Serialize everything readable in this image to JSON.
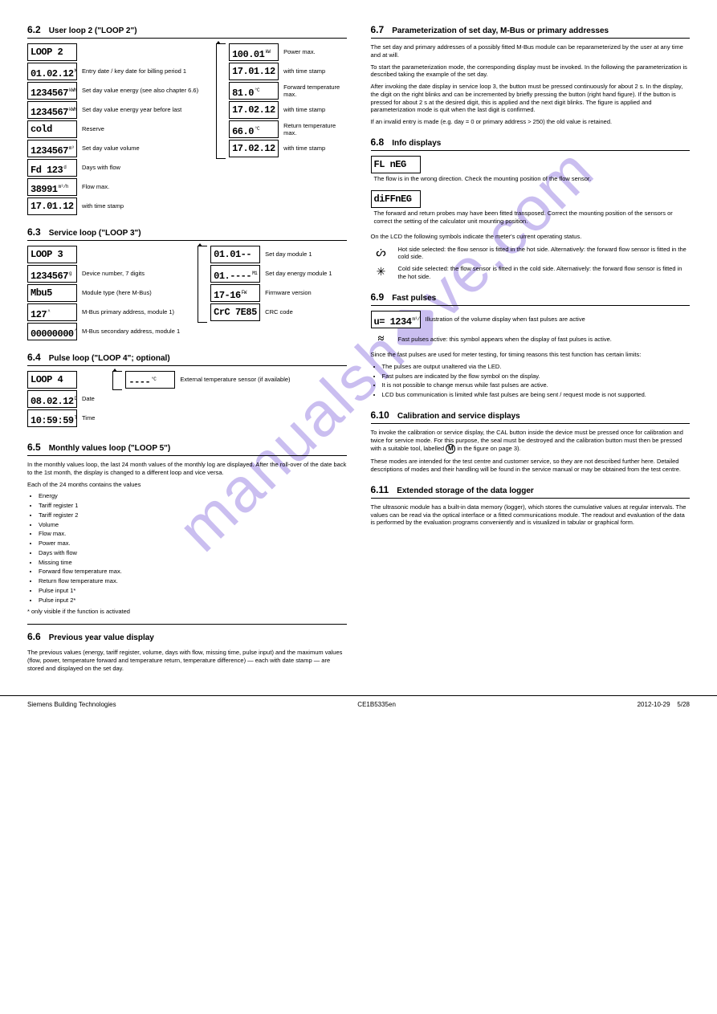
{
  "watermark": "manualshive.com",
  "left": {
    "s62": {
      "num": "6.2",
      "title": "User loop 2 (\"LOOP 2\")",
      "main": [
        {
          "disp": "LOOP 2",
          "desc": ""
        },
        {
          "disp": "01.02.12",
          "sub": "M1",
          "desc": "Entry date / key date for billing period 1"
        },
        {
          "disp": "1234567",
          "sub": "kWh",
          "desc": "Set day value energy (see also chapter 6.6)"
        },
        {
          "disp": "1234567",
          "sub": "kWh",
          "desc": "Set day value energy year before last"
        },
        {
          "disp": "cold",
          "sub": "",
          "desc": "Reserve"
        },
        {
          "disp": "1234567",
          "sub": "m³",
          "desc": "Set day value volume"
        },
        {
          "disp": "Fd 123",
          "sub": "d",
          "desc": "Days with flow"
        },
        {
          "disp": "38991",
          "sub": "m³/h",
          "desc": "Flow max."
        },
        {
          "disp": "17.01.12",
          "sub": "",
          "desc": "with time stamp"
        }
      ],
      "sub": [
        {
          "disp": "100.01",
          "sub": "kW",
          "desc": "Power max."
        },
        {
          "disp": "17.01.12",
          "sub": "",
          "desc": "with time stamp"
        },
        {
          "disp": "81.0",
          "sub": "°C",
          "desc": "Forward temperature max."
        },
        {
          "disp": "17.02.12",
          "sub": "",
          "desc": "with time stamp"
        },
        {
          "disp": "66.0",
          "sub": "°C",
          "desc": "Return temperature max."
        },
        {
          "disp": "17.02.12",
          "sub": "",
          "desc": "with time stamp"
        }
      ]
    },
    "s63": {
      "num": "6.3",
      "title": "Service loop (\"LOOP 3\")",
      "main": [
        {
          "disp": "LOOP 3",
          "desc": ""
        },
        {
          "disp": "1234567",
          "sub": "g",
          "desc": "Device number, 7 digits"
        },
        {
          "disp": "Mbu5",
          "sub": "",
          "desc": "Module type (here M-Bus)"
        },
        {
          "disp": "127",
          "sub": "^",
          "desc": "M-Bus primary address, module 1)"
        },
        {
          "disp": "00000000",
          "sub": "^",
          "desc": "M-Bus secondary address, module 1"
        }
      ],
      "sub": [
        {
          "disp": "01.01--",
          "sub": "",
          "desc": "Set day module 1"
        },
        {
          "disp": "01.----",
          "sub": "M1",
          "desc": "Set day energy module 1"
        },
        {
          "disp": "17-16",
          "sub": "FW",
          "desc": "Firmware version"
        },
        {
          "disp": "CrC 7E85",
          "sub": "",
          "desc": "CRC code"
        }
      ]
    },
    "s64": {
      "num": "6.4",
      "title": "Pulse loop (\"LOOP 4\"; optional)",
      "main": [
        {
          "disp": "LOOP 4",
          "desc": ""
        },
        {
          "disp": "08.02.12",
          "sub": "D",
          "desc": "Date"
        },
        {
          "disp": "10:59:59",
          "sub": "T",
          "desc": "Time"
        }
      ],
      "sub": [
        {
          "disp": "----",
          "sub": "°C",
          "desc": "External temperature sensor (if available)"
        }
      ]
    },
    "s65": {
      "num": "6.5",
      "title": "Monthly values loop (\"LOOP 5\")",
      "text": [
        "In the monthly values loop, the last 24 month values of the monthly log are displayed. After the roll-over of the date back to the 1st month, the display is changed to a different loop and vice versa.",
        "Each of the 24 months contains the values",
        "- Energy",
        "- Tariff register 1",
        "- Tariff register 2",
        "- Volume",
        "- Flow max.",
        "- Power max.",
        "- Days with flow",
        "- Missing time",
        "- Forward flow temperature max.",
        "- Return flow temperature max.",
        "- Pulse input 1*",
        "- Pulse input 2*",
        "* only visible if the function is activated"
      ]
    },
    "s66": {
      "num": "6.6",
      "title": "Previous year value display",
      "text": "The previous values (energy, tariff register, volume, days with flow, missing time, pulse input) and the maximum values (flow, power, temperature forward and temperature return, temperature difference) — each with date stamp — are stored and displayed on the set day."
    }
  },
  "right": {
    "s67": {
      "num": "6.7",
      "title": "Parameterization of set day, M-Bus or primary addresses",
      "text": [
        "The set day and primary addresses of a possibly fitted M-Bus module can be reparameterized by the user at any time and at will.",
        "To start the parameterization mode, the corresponding display must be invoked. In the following the parameterization is described taking the example of the set day.",
        "After invoking the date display in service loop 3, the button must be pressed continuously for about 2 s. In the display, the digit on the right blinks and can be incremented by briefly pressing the button (right hand figure). If the button is pressed for about 2 s at the desired digit, this is applied and the next digit blinks. The figure is applied and parameterization mode is quit when the last digit is confirmed.",
        "If an invalid entry is made (e.g. day = 0 or primary address > 250) the old value is retained."
      ]
    },
    "s68": {
      "num": "6.8",
      "title": "Info displays",
      "rows": [
        {
          "disp": "FL nEG",
          "desc": "The flow is in the wrong direction.\nCheck the mounting position of the flow sensor."
        },
        {
          "disp": "diFFnEG",
          "desc": "The forward and return probes may have been fitted transposed.\nCorrect the mounting position of the sensors or correct the setting of the calculator unit mounting position."
        }
      ],
      "symIntro": "On the LCD the following symbols indicate the meter's current operating status.",
      "syms": [
        {
          "sym": "ᔖ",
          "desc": "Hot side selected: the flow sensor is fitted in the hot side.\nAlternatively: the forward flow sensor is fitted in the cold side."
        },
        {
          "sym": "✳",
          "desc": "Cold side selected: the flow sensor is fitted in the cold side.\nAlternatively: the forward flow sensor is fitted in the hot side."
        }
      ]
    },
    "s69": {
      "num": "6.9",
      "title": "Fast pulses",
      "row": {
        "disp": "u= 1234",
        "sub": "m³/h",
        "desc": "Illustration of the volume display when fast pulses are active"
      },
      "sym": {
        "sym": "≈",
        "desc": "Fast pulses active: this symbol appears when the display of fast pulses is active."
      },
      "tail": [
        "Since the fast pulses are used for meter testing, for timing reasons this test function has certain limits:",
        "- The pulses are output unaltered via the LED.",
        "- Fast pulses are indicated by the flow symbol on the display.",
        "- It is not possible to change menus while fast pulses are active.",
        "- LCD bus communication is limited while fast pulses are being sent / request mode is not supported."
      ]
    },
    "s610": {
      "num": "6.10",
      "title": "Calibration and service displays",
      "text": [
        "To invoke the calibration or service display, the CAL button inside the device must be pressed once for calibration and twice for service mode. For this purpose, the seal must be destroyed and the calibration button must then be pressed with a suitable tool, labelled ",
        " in the figure on page 3).",
        "These modes are intended for the test centre and customer service, so they are not described further here. Detailed descriptions of modes and their handling will be found in the service manual or may be obtained from the test centre."
      ]
    },
    "s611": {
      "num": "6.11",
      "title": "Extended storage of the data logger",
      "text": "The ultrasonic module has a built-in data memory (logger), which stores the cumulative values at regular intervals. The values can be read via the optical interface or a fitted communications module. The readout and evaluation of the data is performed by the evaluation programs conveniently and is visualized in tabular or graphical form."
    }
  },
  "footer": {
    "left": "Siemens Building Technologies",
    "center": "CE1B5335en",
    "right_date": "2012-10-29",
    "right_page": "5/28"
  }
}
